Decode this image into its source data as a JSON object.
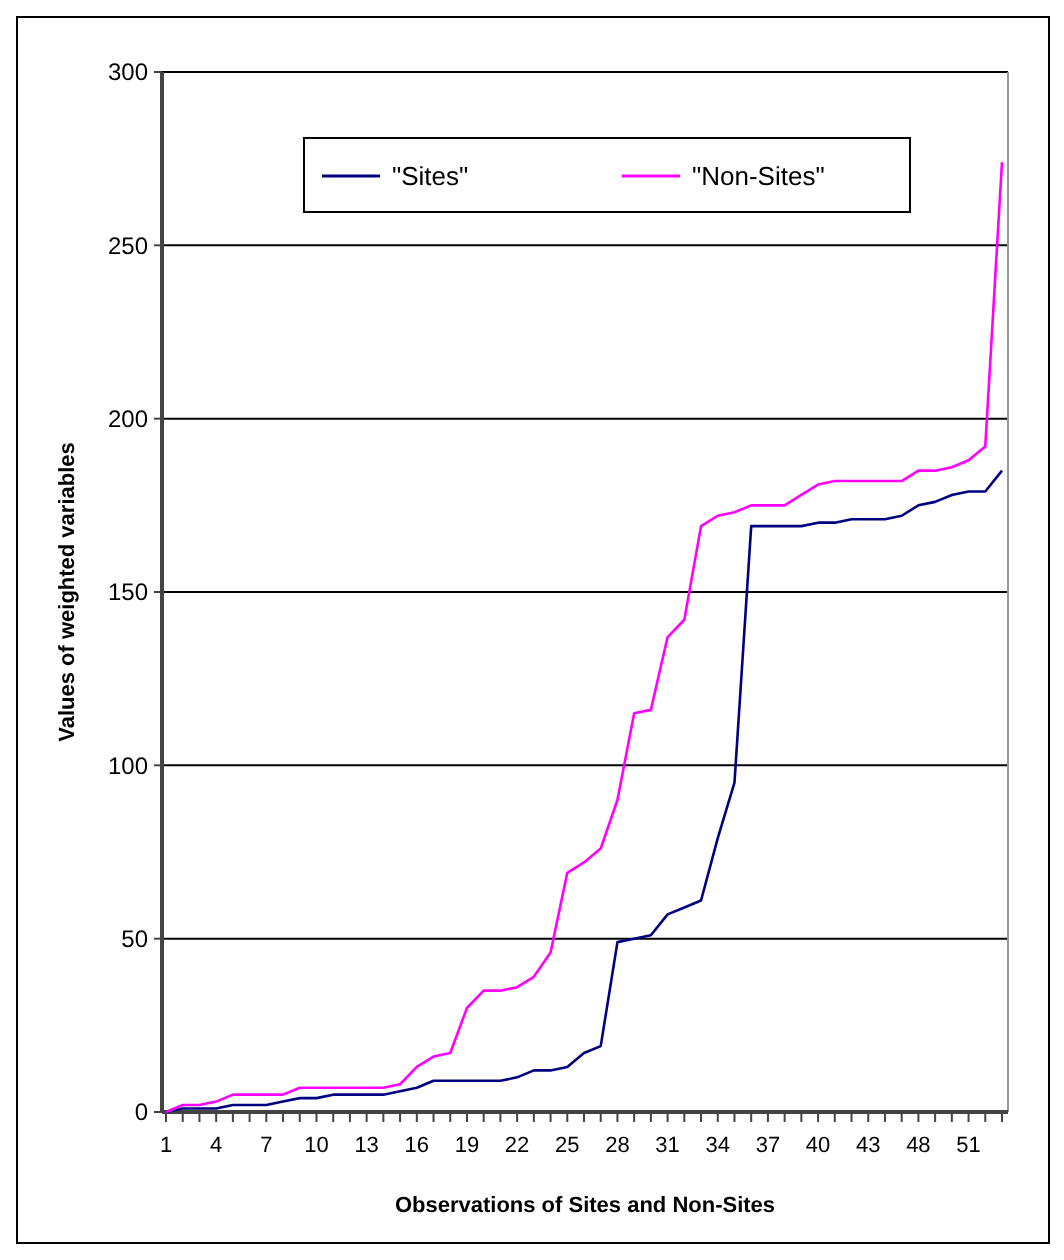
{
  "chart_data": {
    "type": "line",
    "xlabel": "Observations of Sites and Non-Sites",
    "ylabel": "Values of weighted variables",
    "categories": [
      "1",
      null,
      null,
      "4",
      null,
      null,
      "7",
      null,
      null,
      "10",
      null,
      null,
      "13",
      null,
      null,
      "16",
      null,
      null,
      "19",
      null,
      null,
      "22",
      null,
      null,
      "25",
      null,
      null,
      "28",
      null,
      null,
      "31",
      null,
      null,
      "34",
      null,
      null,
      "37",
      null,
      null,
      "40",
      null,
      null,
      "43",
      null,
      null,
      "48",
      null,
      null,
      "51",
      null,
      null
    ],
    "series": [
      {
        "name": "\"Sites\"",
        "color": "#000080",
        "values": [
          0,
          1,
          1,
          1,
          2,
          2,
          2,
          3,
          4,
          4,
          5,
          5,
          5,
          5,
          6,
          7,
          9,
          9,
          9,
          9,
          9,
          10,
          12,
          12,
          13,
          17,
          19,
          49,
          50,
          51,
          57,
          59,
          61,
          79,
          95,
          169,
          169,
          169,
          169,
          170,
          170,
          171,
          171,
          171,
          172,
          175,
          176,
          178,
          179,
          179,
          185
        ]
      },
      {
        "name": "\"Non-Sites\"",
        "color": "#ff00ff",
        "values": [
          0,
          2,
          2,
          3,
          5,
          5,
          5,
          5,
          7,
          7,
          7,
          7,
          7,
          7,
          8,
          13,
          16,
          17,
          30,
          35,
          35,
          36,
          39,
          46,
          69,
          72,
          76,
          90,
          115,
          116,
          137,
          142,
          169,
          172,
          173,
          175,
          175,
          175,
          178,
          181,
          182,
          182,
          182,
          182,
          182,
          185,
          185,
          186,
          188,
          192,
          274
        ]
      }
    ],
    "ylim": [
      0,
      300
    ],
    "yticks": [
      0,
      50,
      100,
      150,
      200,
      250,
      300
    ],
    "grid": "y",
    "legend": "top",
    "marker": "none",
    "line_style": "solid"
  }
}
